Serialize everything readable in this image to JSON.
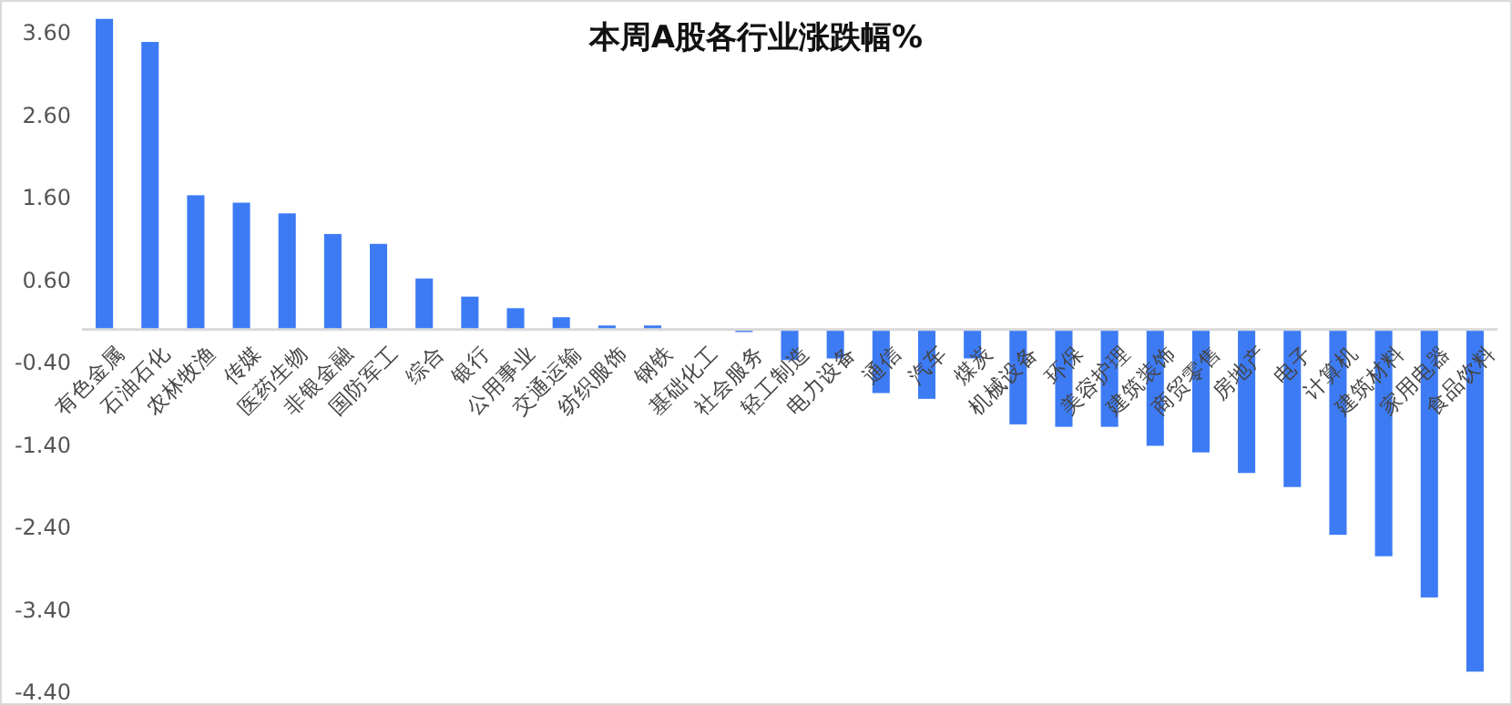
{
  "chart_data": {
    "type": "bar",
    "title": "本周A股各行业涨跌幅%",
    "categories": [
      "有色金属",
      "石油石化",
      "农林牧渔",
      "传媒",
      "医药生物",
      "非银金融",
      "国防军工",
      "综合",
      "银行",
      "公用事业",
      "交通运输",
      "纺织服饰",
      "钢铁",
      "基础化工",
      "社会服务",
      "轻工制造",
      "电力设备",
      "通信",
      "汽车",
      "煤炭",
      "机械设备",
      "环保",
      "美容护理",
      "建筑装饰",
      "商贸零售",
      "房地产",
      "电子",
      "计算机",
      "建筑材料",
      "家用电器",
      "食品饮料"
    ],
    "values": [
      3.77,
      3.49,
      1.63,
      1.54,
      1.41,
      1.16,
      1.04,
      0.62,
      0.4,
      0.26,
      0.15,
      0.05,
      0.05,
      0,
      -0.03,
      -0.37,
      -0.35,
      -0.77,
      -0.84,
      -0.35,
      -1.15,
      -1.18,
      -1.18,
      -1.41,
      -1.49,
      -1.74,
      -1.91,
      -2.49,
      -2.75,
      -3.25,
      -4.15
    ],
    "color": "#3d7bf5",
    "ylim": [
      -4.4,
      3.8
    ],
    "yticks": [
      {
        "value": 3.6,
        "label": "3.60"
      },
      {
        "value": 2.6,
        "label": "2.60"
      },
      {
        "value": 1.6,
        "label": "1.60"
      },
      {
        "value": 0.6,
        "label": "0.60"
      },
      {
        "value": -0.4,
        "label": "-0.40"
      },
      {
        "value": -1.4,
        "label": "-1.40"
      },
      {
        "value": -2.4,
        "label": "-2.40"
      },
      {
        "value": -3.4,
        "label": "-3.40"
      },
      {
        "value": -4.4,
        "label": "-4.40"
      }
    ],
    "grid": false
  }
}
